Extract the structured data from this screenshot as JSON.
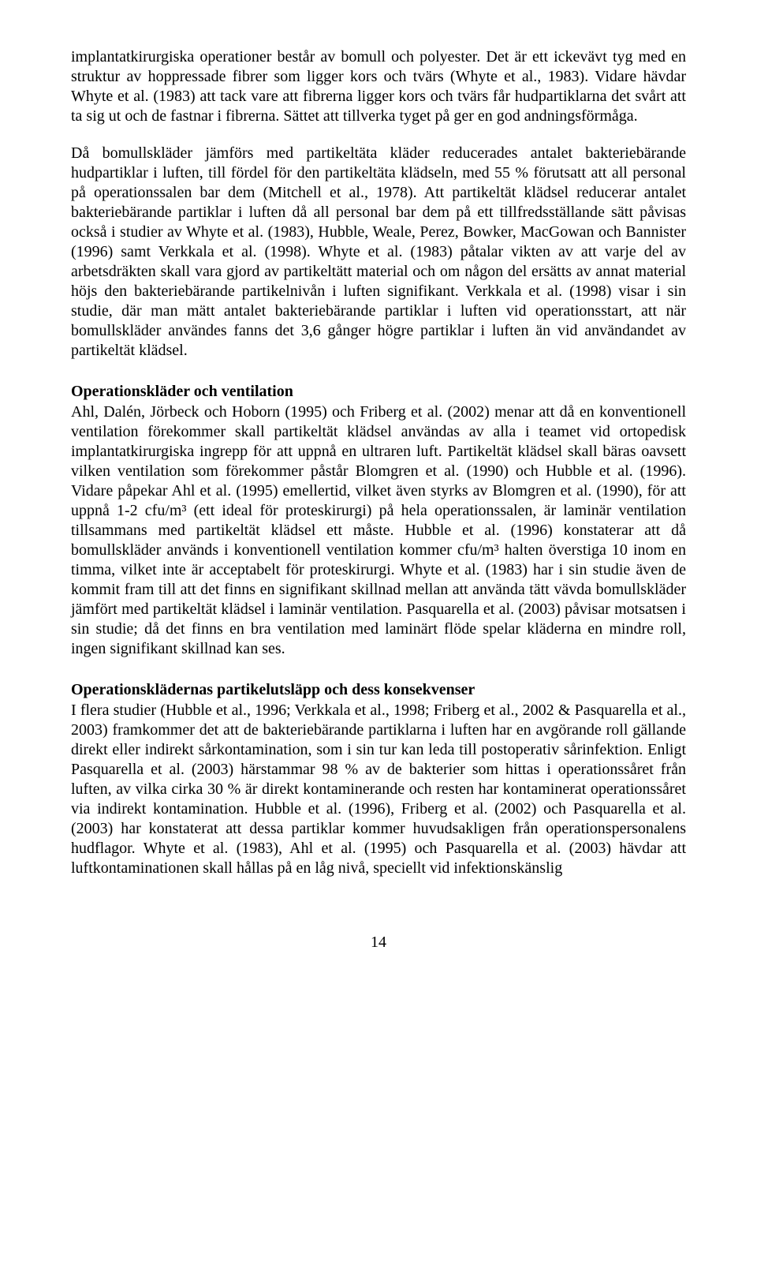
{
  "paragraphs": {
    "p1": "implantatkirurgiska operationer består av bomull och polyester. Det är ett ickevävt tyg med en struktur av hoppressade fibrer som ligger kors och tvärs (Whyte et al., 1983). Vidare hävdar Whyte et al. (1983) att tack vare att fibrerna ligger kors och tvärs får hudpartiklarna det svårt att ta sig ut och de fastnar i fibrerna. Sättet att tillverka tyget på ger en god andningsförmåga.",
    "p2": "Då bomullskläder jämförs med partikeltäta kläder reducerades antalet bakteriebärande hudpartiklar i luften, till fördel för den partikeltäta klädseln, med 55 % förutsatt att all personal på operationssalen bar dem (Mitchell et al., 1978). Att partikeltät klädsel reducerar antalet bakteriebärande partiklar i luften då all personal bar dem på ett tillfredsställande sätt påvisas också i studier av Whyte et al. (1983), Hubble, Weale, Perez, Bowker, MacGowan och Bannister (1996) samt Verkkala et al. (1998). Whyte et al. (1983) påtalar vikten av att varje del av arbetsdräkten skall vara gjord av partikeltätt material och om någon del ersätts av annat material höjs den bakteriebärande partikelnivån i luften signifikant. Verkkala et al. (1998) visar i sin studie, där man mätt antalet bakteriebärande partiklar i luften vid operationsstart, att när bomullskläder användes fanns det 3,6 gånger högre partiklar i luften än vid användandet av partikeltät klädsel."
  },
  "sections": {
    "s1": {
      "heading": "Operationskläder och ventilation",
      "body": "Ahl, Dalén, Jörbeck och Hoborn (1995) och Friberg et al. (2002) menar att då en konventionell ventilation förekommer skall partikeltät klädsel användas av alla i teamet vid ortopedisk implantatkirurgiska ingrepp för att uppnå en ultraren luft. Partikeltät klädsel skall bäras oavsett vilken ventilation som förekommer påstår Blomgren et al. (1990) och Hubble et al. (1996). Vidare påpekar Ahl et al. (1995) emellertid, vilket även styrks av Blomgren et al. (1990), för att uppnå 1-2 cfu/m³ (ett ideal för proteskirurgi) på hela operationssalen, är laminär ventilation tillsammans med partikeltät klädsel ett måste. Hubble et al. (1996) konstaterar att då bomullskläder används i konventionell ventilation kommer cfu/m³ halten överstiga 10 inom en timma, vilket inte är acceptabelt för proteskirurgi. Whyte et al. (1983) har i sin studie även de kommit fram till att det finns en signifikant skillnad mellan att använda tätt vävda bomullskläder jämfört med partikeltät klädsel i laminär ventilation. Pasquarella et al. (2003) påvisar motsatsen i sin studie; då det finns en bra ventilation med laminärt flöde spelar kläderna en mindre roll, ingen signifikant skillnad kan ses."
    },
    "s2": {
      "heading": "Operationsklädernas partikelutsläpp och dess konsekvenser",
      "body": "I flera studier (Hubble et al., 1996; Verkkala et al., 1998; Friberg et al., 2002 & Pasquarella et al., 2003) framkommer det att de bakteriebärande partiklarna i luften har en avgörande roll gällande direkt eller indirekt sårkontamination, som i sin tur kan leda till postoperativ sårinfektion. Enligt Pasquarella et al. (2003) härstammar 98 % av de bakterier som hittas i operationssåret från luften, av vilka cirka 30 % är direkt kontaminerande och resten har kontaminerat operationssåret via indirekt kontamination. Hubble et al. (1996), Friberg et al. (2002) och Pasquarella et al. (2003) har konstaterat att dessa partiklar kommer huvudsakligen från operationspersonalens hudflagor. Whyte et al. (1983), Ahl et al. (1995) och Pasquarella et al. (2003) hävdar att luftkontaminationen skall hållas på en låg nivå, speciellt vid infektionskänslig"
    }
  },
  "pageNumber": "14"
}
